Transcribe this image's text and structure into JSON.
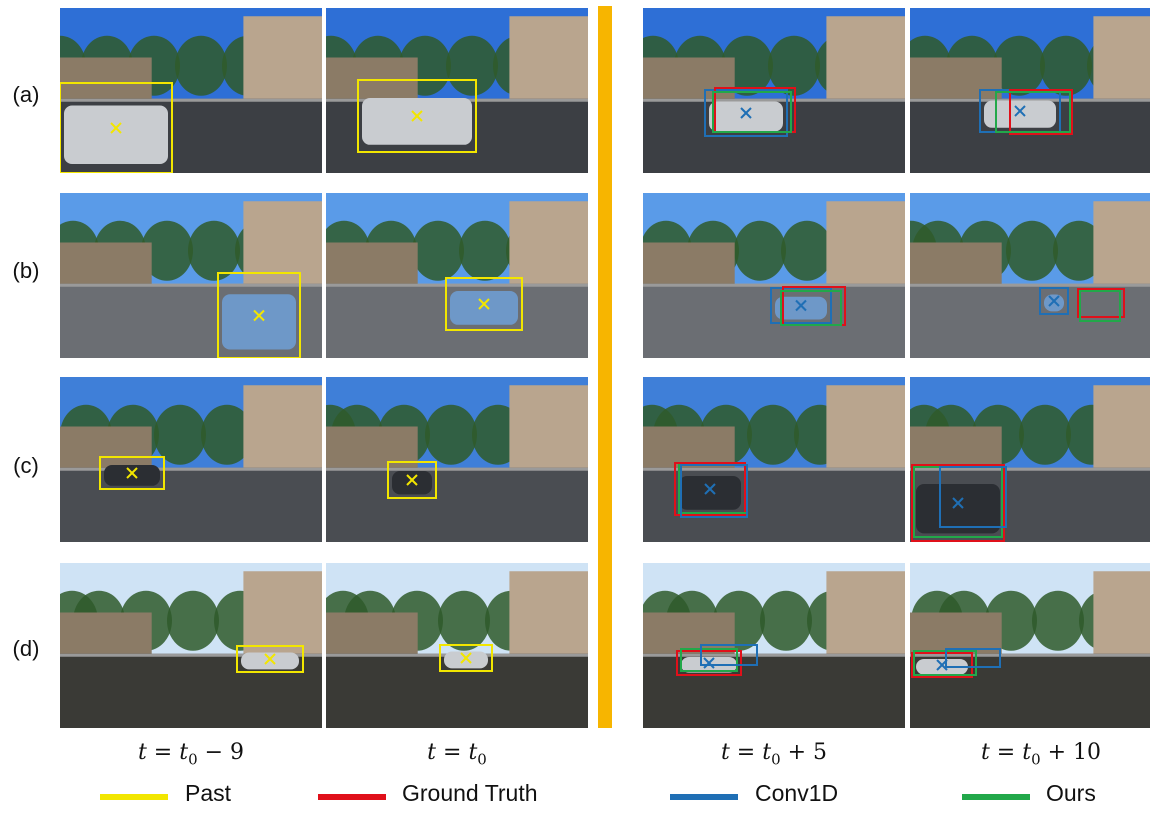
{
  "rows": [
    {
      "label": "(a)"
    },
    {
      "label": "(b)"
    },
    {
      "label": "(c)"
    },
    {
      "label": "(d)"
    }
  ],
  "time_labels": [
    {
      "var": "t",
      "eq": " = ",
      "base": "t",
      "sub": "0",
      "tail": " − 9"
    },
    {
      "var": "t",
      "eq": " = ",
      "base": "t",
      "sub": "0",
      "tail": ""
    },
    {
      "var": "t",
      "eq": " = ",
      "base": "t",
      "sub": "0",
      "tail": " + 5"
    },
    {
      "var": "t",
      "eq": " = ",
      "base": "t",
      "sub": "0",
      "tail": " + 10"
    }
  ],
  "legend": [
    {
      "label": "Past",
      "color": "#F2E600"
    },
    {
      "label": "Ground Truth",
      "color": "#E0101A"
    },
    {
      "label": "Conv1D",
      "color": "#1F6FB5"
    },
    {
      "label": "Ours",
      "color": "#22A84A"
    }
  ],
  "colors": {
    "past": "#F2E600",
    "ground_truth": "#E0101A",
    "conv1d": "#1F6FB5",
    "ours": "#22A84A",
    "divider": "#F7B500"
  }
}
